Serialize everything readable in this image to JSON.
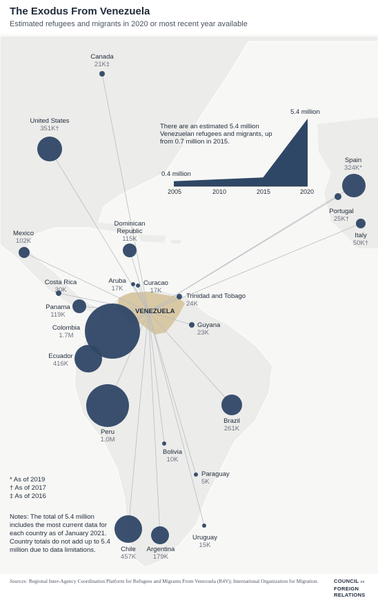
{
  "header": {
    "title": "The Exodus From Venezuela",
    "subtitle": "Estimated refugees and migrants in 2020 or most recent year available"
  },
  "colors": {
    "land": "#ededed",
    "ocean": "#f7f7f5",
    "venezuela": "#d8c8a4",
    "bubble": "#2f4766",
    "line": "#b9bcc2"
  },
  "origin": "VENEZUELA",
  "countries": [
    {
      "name": "Canada",
      "value": "21K‡"
    },
    {
      "name": "United States",
      "value": "351K†"
    },
    {
      "name": "Mexico",
      "value": "102K"
    },
    {
      "name": "Dominican Republic",
      "value": "115K"
    },
    {
      "name": "Costa Rica",
      "value": "30K"
    },
    {
      "name": "Panama",
      "value": "119K"
    },
    {
      "name": "Aruba",
      "value": "17K"
    },
    {
      "name": "Curacao",
      "value": "17K"
    },
    {
      "name": "Trinidad and Tobago",
      "value": "24K"
    },
    {
      "name": "Guyana",
      "value": "23K"
    },
    {
      "name": "Colombia",
      "value": "1.7M"
    },
    {
      "name": "Ecuador",
      "value": "416K"
    },
    {
      "name": "Peru",
      "value": "1.0M"
    },
    {
      "name": "Brazil",
      "value": "261K"
    },
    {
      "name": "Bolivia",
      "value": "10K"
    },
    {
      "name": "Paraguay",
      "value": "5K"
    },
    {
      "name": "Uruguay",
      "value": "15K"
    },
    {
      "name": "Chile",
      "value": "457K"
    },
    {
      "name": "Argentina",
      "value": "179K"
    },
    {
      "name": "Spain",
      "value": "324K*"
    },
    {
      "name": "Portugal",
      "value": "25K†"
    },
    {
      "name": "Italy",
      "value": "50K†"
    }
  ],
  "inset": {
    "text": "There are an estimated 5.4 million Venezuelan refugees and migrants, up from 0.7 million in 2015.",
    "max_label": "5.4 million",
    "min_label": "0.4 million",
    "ticks": [
      "2005",
      "2010",
      "2015",
      "2020"
    ],
    "chart_data": {
      "type": "area",
      "x": [
        2005,
        2015,
        2020
      ],
      "y": [
        0.4,
        0.7,
        5.4
      ],
      "xlim": [
        2005,
        2020
      ],
      "unit": "million"
    }
  },
  "footnotes": [
    "* As of 2019",
    "† As of 2017",
    "‡ As of 2016"
  ],
  "notes": "Notes: The total of 5.4 million includes the most current data for each country as of January 2021. Country totals do not add up to 5.4 million due to data limitations.",
  "sources": {
    "label": "Sources:",
    "text": "Regional Inter-Agency Coordination Platform for Refugees and Migrants From Venezuela (R4V); International Organization for Migration."
  },
  "logo": {
    "line1": "COUNCIL",
    "line1_suffix": "on",
    "line2": "FOREIGN",
    "line3": "RELATIONS"
  }
}
